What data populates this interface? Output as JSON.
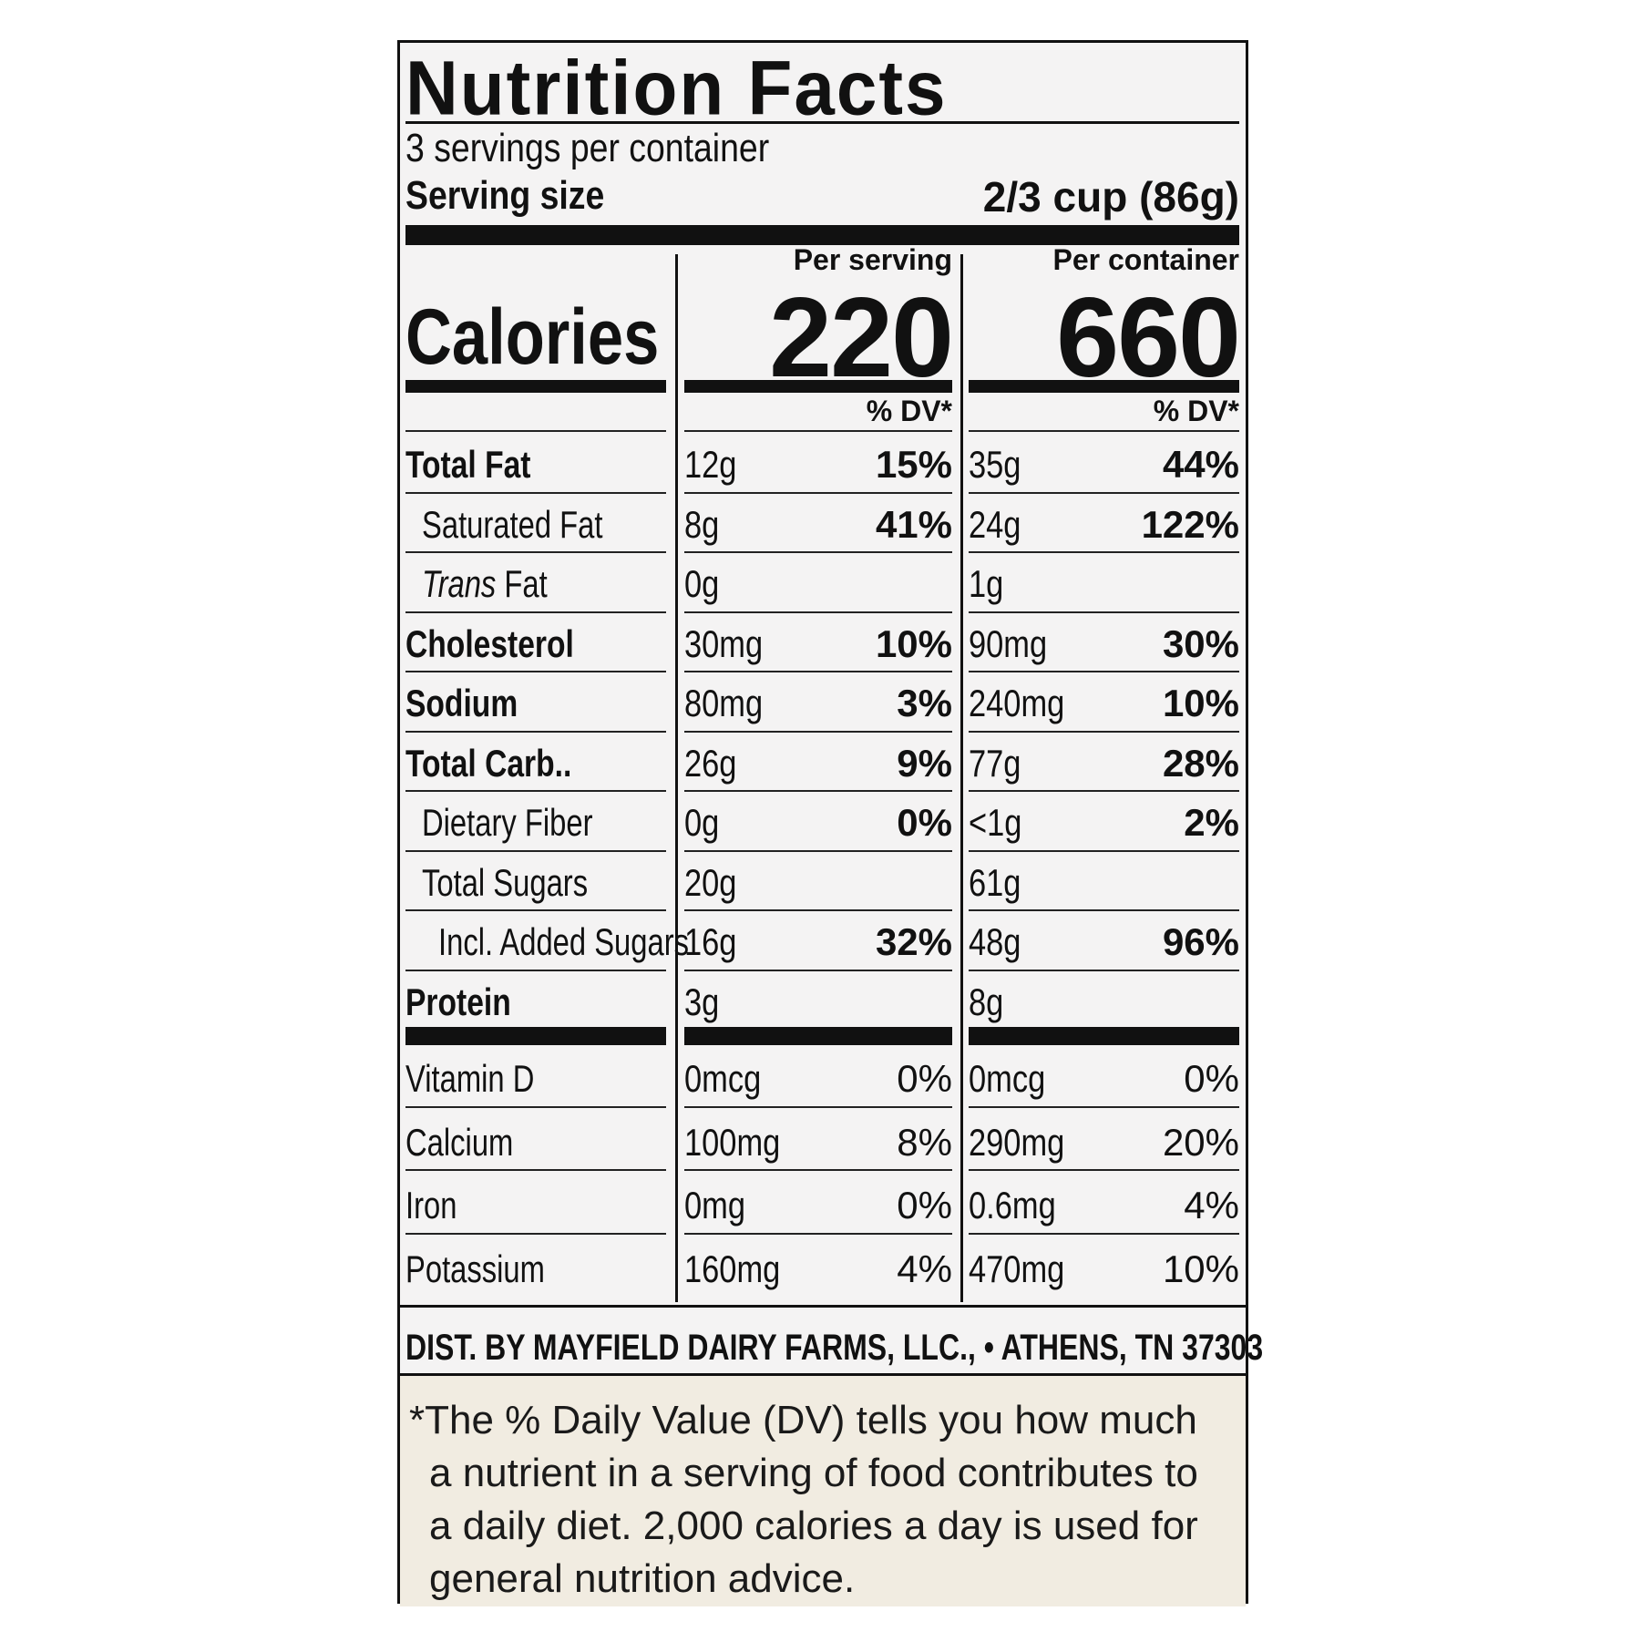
{
  "label": {
    "title": "Nutrition Facts",
    "servings_per_container": "3 servings per container",
    "serving_size_label": "Serving size",
    "serving_size_value": "2/3 cup (86g)",
    "calories_label": "Calories",
    "col_per_serving": "Per serving",
    "col_per_container": "Per container",
    "calories_per_serving": "220",
    "calories_per_container": "660",
    "dv_header": "% DV*",
    "nutrients": [
      {
        "name": "Total Fat",
        "serving_amount": "12g",
        "serving_dv": "15%",
        "container_amount": "35g",
        "container_dv": "44%"
      },
      {
        "name": "Saturated Fat",
        "serving_amount": "8g",
        "serving_dv": "41%",
        "container_amount": "24g",
        "container_dv": "122%"
      },
      {
        "name_italic": "Trans",
        "name": " Fat",
        "serving_amount": "0g",
        "serving_dv": "",
        "container_amount": "1g",
        "container_dv": ""
      },
      {
        "name": "Cholesterol",
        "serving_amount": "30mg",
        "serving_dv": "10%",
        "container_amount": "90mg",
        "container_dv": "30%"
      },
      {
        "name": "Sodium",
        "serving_amount": "80mg",
        "serving_dv": "3%",
        "container_amount": "240mg",
        "container_dv": "10%"
      },
      {
        "name": "Total Carb..",
        "serving_amount": "26g",
        "serving_dv": "9%",
        "container_amount": "77g",
        "container_dv": "28%"
      },
      {
        "name": "Dietary Fiber",
        "serving_amount": "0g",
        "serving_dv": "0%",
        "container_amount": "<1g",
        "container_dv": "2%"
      },
      {
        "name": "Total Sugars",
        "serving_amount": "20g",
        "serving_dv": "",
        "container_amount": "61g",
        "container_dv": ""
      },
      {
        "name": "Incl. Added Sugars",
        "serving_amount": "16g",
        "serving_dv": "32%",
        "container_amount": "48g",
        "container_dv": "96%"
      },
      {
        "name": "Protein",
        "serving_amount": "3g",
        "serving_dv": "",
        "container_amount": "8g",
        "container_dv": ""
      }
    ],
    "vitamins": [
      {
        "name": "Vitamin D",
        "serving_amount": "0mcg",
        "serving_dv": "0%",
        "container_amount": "0mcg",
        "container_dv": "0%"
      },
      {
        "name": "Calcium",
        "serving_amount": "100mg",
        "serving_dv": "8%",
        "container_amount": "290mg",
        "container_dv": "20%"
      },
      {
        "name": "Iron",
        "serving_amount": "0mg",
        "serving_dv": "0%",
        "container_amount": "0.6mg",
        "container_dv": "4%"
      },
      {
        "name": "Potassium",
        "serving_amount": "160mg",
        "serving_dv": "4%",
        "container_amount": "470mg",
        "container_dv": "10%"
      }
    ],
    "distributor": "DIST. BY MAYFIELD DAIRY FARMS, LLC., • ATHENS, TN 37303",
    "footnote_lines": [
      "*The % Daily Value (DV) tells you how much",
      "a nutrient in a serving of food contributes to",
      "a daily diet. 2,000 calories a day is used for",
      "general nutrition advice."
    ]
  }
}
